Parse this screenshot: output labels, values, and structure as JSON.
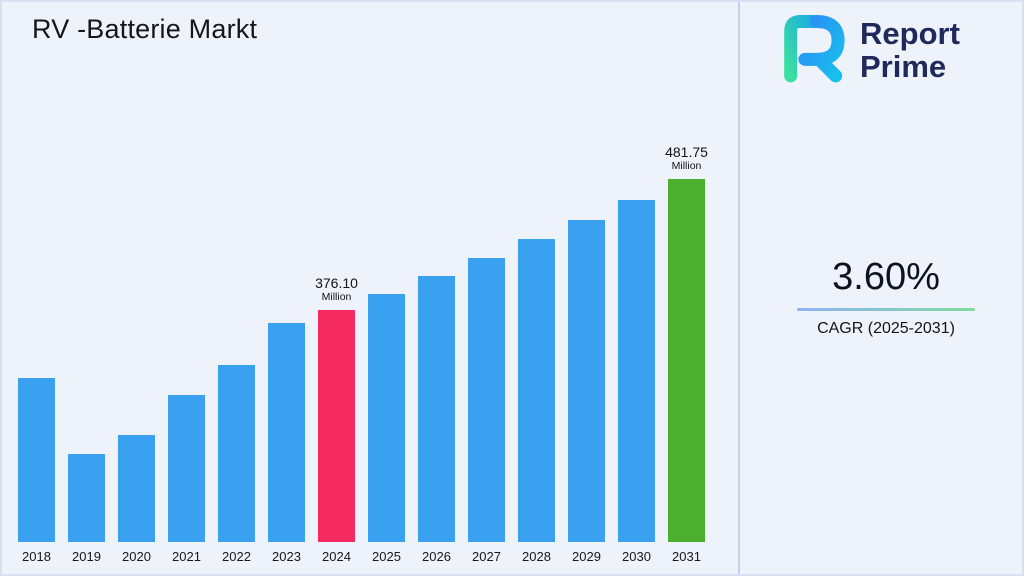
{
  "page": {
    "title": "RV -Batterie Markt",
    "background_color": "#EDF2FB"
  },
  "logo": {
    "line1": "Report",
    "line2": "Prime",
    "text_color": "#20295B",
    "mark_colors": {
      "teal": "#3BE0A0",
      "blue": "#2E8BF7",
      "cyan": "#17C0EC"
    }
  },
  "stats": {
    "cagr_value": "3.60%",
    "cagr_label": "CAGR (2025-2031)"
  },
  "chart_data": {
    "type": "bar",
    "title": "RV -Batterie Markt",
    "unit": "Million",
    "categories": [
      "2018",
      "2019",
      "2020",
      "2021",
      "2022",
      "2023",
      "2024",
      "2025",
      "2026",
      "2027",
      "2028",
      "2029",
      "2030",
      "2031"
    ],
    "values": [
      322,
      261,
      276,
      308,
      332,
      366,
      376.1,
      389.64,
      403.67,
      418.2,
      433.25,
      448.85,
      465.01,
      481.75
    ],
    "data_labels": [
      {
        "category": "2024",
        "label": "376.10",
        "sublabel": "Million"
      },
      {
        "category": "2031",
        "label": "481.75",
        "sublabel": "Million"
      }
    ],
    "colors": {
      "default": "#3AA0F0",
      "highlights": {
        "2024": "#F62B61",
        "2031": "#4CAF2D"
      }
    },
    "ylim": [
      190,
      500
    ],
    "grid": false,
    "y_axis_visible": false,
    "legend": "none"
  }
}
